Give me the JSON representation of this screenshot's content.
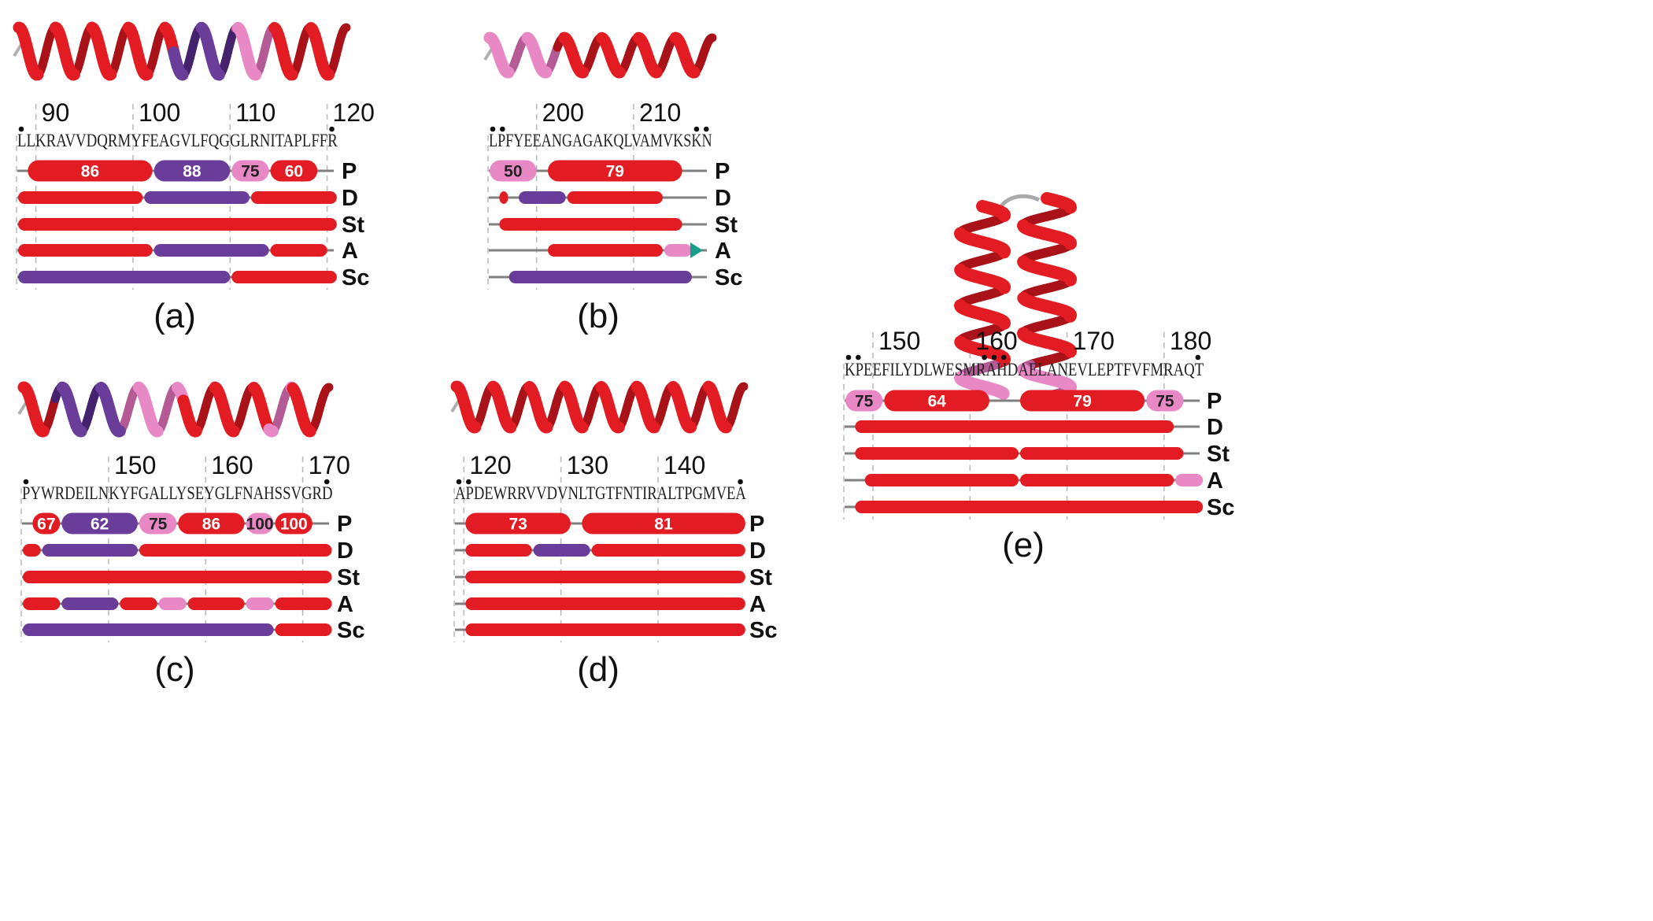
{
  "colors": {
    "helix": "#e31c23",
    "helix_shadow": "#a81218",
    "purple": "#6a3d9a",
    "purple_shadow": "#45226e",
    "pink": "#e889c6",
    "pink_shadow": "#b45a94",
    "line": "#808080",
    "grid": "#b8b8b8",
    "arrow": "#1a9e8a"
  },
  "panels": [
    {
      "id": "a",
      "label": "(a)",
      "sequence": "LLKRAVVDQRMYFEAGVLFQGGLRNITAPLFFR",
      "ticks": [
        {
          "label": "90"
        },
        {
          "label": "100"
        },
        {
          "label": "110"
        },
        {
          "label": "120"
        }
      ],
      "tracks": [
        {
          "name": "P",
          "segments": [
            {
              "s": 1,
              "e": 13,
              "c": "helix",
              "label": "86"
            },
            {
              "s": 14,
              "e": 21,
              "c": "purple",
              "label": "88"
            },
            {
              "s": 22,
              "e": 25,
              "c": "pink",
              "label": "75"
            },
            {
              "s": 26,
              "e": 30,
              "c": "helix",
              "label": "60"
            }
          ]
        },
        {
          "name": "D",
          "segments": [
            {
              "s": 0,
              "e": 12,
              "c": "helix"
            },
            {
              "s": 13,
              "e": 23,
              "c": "purple"
            },
            {
              "s": 24,
              "e": 32,
              "c": "helix"
            }
          ]
        },
        {
          "name": "St",
          "segments": [
            {
              "s": 0,
              "e": 32,
              "c": "helix"
            }
          ]
        },
        {
          "name": "A",
          "segments": [
            {
              "s": 0,
              "e": 13,
              "c": "helix"
            },
            {
              "s": 14,
              "e": 25,
              "c": "purple"
            },
            {
              "s": 26,
              "e": 31,
              "c": "helix"
            }
          ]
        },
        {
          "name": "Sc",
          "segments": [
            {
              "s": 0,
              "e": 21,
              "c": "purple"
            },
            {
              "s": 22,
              "e": 32,
              "c": "helix"
            }
          ]
        }
      ]
    },
    {
      "id": "b",
      "label": "(b)",
      "sequence": "LPFYEEANGAGAKQLVAMVKSKN",
      "ticks": [
        {
          "label": "200"
        },
        {
          "label": "210"
        }
      ],
      "tracks": [
        {
          "name": "P",
          "segments": [
            {
              "s": 0,
              "e": 4,
              "c": "pink",
              "label": "50"
            },
            {
              "s": 6,
              "e": 19,
              "c": "helix",
              "label": "79"
            }
          ]
        },
        {
          "name": "D",
          "segments": [
            {
              "s": 1,
              "e": 1,
              "c": "helix"
            },
            {
              "s": 3,
              "e": 7,
              "c": "purple"
            },
            {
              "s": 8,
              "e": 17,
              "c": "helix"
            }
          ]
        },
        {
          "name": "St",
          "segments": [
            {
              "s": 1,
              "e": 19,
              "c": "helix"
            }
          ]
        },
        {
          "name": "A",
          "segments": [
            {
              "s": 6,
              "e": 17,
              "c": "helix"
            },
            {
              "s": 18,
              "e": 20,
              "c": "pink"
            }
          ]
        },
        {
          "name": "Sc",
          "segments": [
            {
              "s": 2,
              "e": 20,
              "c": "purple"
            }
          ]
        }
      ]
    },
    {
      "id": "c",
      "label": "(c)",
      "sequence": "PYWRDEILNKYFGALLYSEYGLFNAHSSVGRD",
      "ticks": [
        {
          "label": "150"
        },
        {
          "label": "160"
        },
        {
          "label": "170"
        }
      ],
      "tracks": [
        {
          "name": "P",
          "segments": [
            {
              "s": 1,
              "e": 3,
              "c": "helix",
              "label": "67"
            },
            {
              "s": 4,
              "e": 11,
              "c": "purple",
              "label": "62"
            },
            {
              "s": 12,
              "e": 15,
              "c": "pink",
              "label": "75"
            },
            {
              "s": 16,
              "e": 22,
              "c": "helix",
              "label": "86"
            },
            {
              "s": 23,
              "e": 25,
              "c": "pink",
              "label": "100"
            },
            {
              "s": 26,
              "e": 29,
              "c": "helix",
              "label": "100"
            }
          ]
        },
        {
          "name": "D",
          "segments": [
            {
              "s": 0,
              "e": 1,
              "c": "helix"
            },
            {
              "s": 2,
              "e": 11,
              "c": "purple"
            },
            {
              "s": 12,
              "e": 31,
              "c": "helix"
            }
          ]
        },
        {
          "name": "St",
          "segments": [
            {
              "s": 0,
              "e": 31,
              "c": "helix"
            }
          ]
        },
        {
          "name": "A",
          "segments": [
            {
              "s": 0,
              "e": 3,
              "c": "helix"
            },
            {
              "s": 4,
              "e": 9,
              "c": "purple"
            },
            {
              "s": 10,
              "e": 13,
              "c": "helix"
            },
            {
              "s": 14,
              "e": 16,
              "c": "pink"
            },
            {
              "s": 17,
              "e": 22,
              "c": "helix"
            },
            {
              "s": 23,
              "e": 25,
              "c": "pink"
            },
            {
              "s": 26,
              "e": 31,
              "c": "helix"
            }
          ]
        },
        {
          "name": "Sc",
          "segments": [
            {
              "s": 0,
              "e": 25,
              "c": "purple"
            },
            {
              "s": 26,
              "e": 31,
              "c": "helix"
            }
          ]
        }
      ]
    },
    {
      "id": "d",
      "label": "(d)",
      "sequence": "APDEWRRVVDVNLTGTFNTIRALTPGMVEA",
      "ticks": [
        {
          "label": "120"
        },
        {
          "label": "130"
        },
        {
          "label": "140"
        }
      ],
      "tracks": [
        {
          "name": "P",
          "segments": [
            {
              "s": 1,
              "e": 11,
              "c": "helix",
              "label": "73"
            },
            {
              "s": 13,
              "e": 29,
              "c": "helix",
              "label": "81"
            }
          ]
        },
        {
          "name": "D",
          "segments": [
            {
              "s": 1,
              "e": 7,
              "c": "helix"
            },
            {
              "s": 8,
              "e": 13,
              "c": "purple"
            },
            {
              "s": 14,
              "e": 29,
              "c": "helix"
            }
          ]
        },
        {
          "name": "St",
          "segments": [
            {
              "s": 1,
              "e": 29,
              "c": "helix"
            }
          ]
        },
        {
          "name": "A",
          "segments": [
            {
              "s": 1,
              "e": 29,
              "c": "helix"
            }
          ]
        },
        {
          "name": "Sc",
          "segments": [
            {
              "s": 1,
              "e": 29,
              "c": "helix"
            }
          ]
        }
      ]
    },
    {
      "id": "e",
      "label": "(e)",
      "sequence": "KPEEFILYDLWESMRAHDAELANEVLEPTFVFMRAQT",
      "ticks": [
        {
          "label": "150"
        },
        {
          "label": "160"
        },
        {
          "label": "170"
        },
        {
          "label": "180"
        }
      ],
      "tracks": [
        {
          "name": "P",
          "segments": [
            {
              "s": 0,
              "e": 3,
              "c": "pink",
              "label": "75"
            },
            {
              "s": 4,
              "e": 14,
              "c": "helix",
              "label": "64"
            },
            {
              "s": 18,
              "e": 30,
              "c": "helix",
              "label": "79"
            },
            {
              "s": 31,
              "e": 34,
              "c": "pink",
              "label": "75"
            }
          ]
        },
        {
          "name": "D",
          "segments": [
            {
              "s": 1,
              "e": 33,
              "c": "helix"
            }
          ]
        },
        {
          "name": "St",
          "segments": [
            {
              "s": 1,
              "e": 17,
              "c": "helix"
            },
            {
              "s": 18,
              "e": 34,
              "c": "helix"
            }
          ]
        },
        {
          "name": "A",
          "segments": [
            {
              "s": 2,
              "e": 17,
              "c": "helix"
            },
            {
              "s": 18,
              "e": 33,
              "c": "helix"
            },
            {
              "s": 34,
              "e": 36,
              "c": "pink"
            }
          ]
        },
        {
          "name": "Sc",
          "segments": [
            {
              "s": 1,
              "e": 36,
              "c": "helix"
            }
          ]
        }
      ]
    }
  ]
}
